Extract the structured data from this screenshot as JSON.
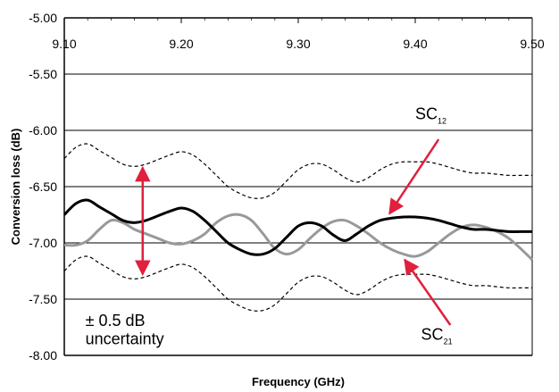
{
  "chart_data": {
    "type": "line",
    "xlabel": "Frequency (GHz)",
    "ylabel": "Conversion loss (dB)",
    "xlim": [
      9.1,
      9.5
    ],
    "ylim": [
      -8.0,
      -5.0
    ],
    "x_ticks": [
      "9.10",
      "9.20",
      "9.30",
      "9.40",
      "9.50"
    ],
    "y_ticks": [
      "-5.00",
      "-5.50",
      "-6.00",
      "-6.50",
      "-7.00",
      "-7.50",
      "-8.00"
    ],
    "grid": "horizontal",
    "x_axis_position": "top",
    "series": [
      {
        "name": "SC12",
        "style": "solid-black",
        "x": [
          9.1,
          9.11,
          9.12,
          9.13,
          9.14,
          9.15,
          9.16,
          9.17,
          9.18,
          9.19,
          9.2,
          9.21,
          9.22,
          9.23,
          9.24,
          9.25,
          9.26,
          9.27,
          9.28,
          9.29,
          9.3,
          9.31,
          9.32,
          9.33,
          9.34,
          9.35,
          9.36,
          9.37,
          9.38,
          9.39,
          9.4,
          9.41,
          9.42,
          9.43,
          9.44,
          9.45,
          9.46,
          9.47,
          9.48,
          9.49,
          9.5
        ],
        "y": [
          -6.75,
          -6.65,
          -6.62,
          -6.68,
          -6.74,
          -6.8,
          -6.82,
          -6.8,
          -6.76,
          -6.72,
          -6.69,
          -6.72,
          -6.8,
          -6.9,
          -7.0,
          -7.06,
          -7.1,
          -7.1,
          -7.05,
          -6.95,
          -6.85,
          -6.82,
          -6.85,
          -6.93,
          -6.98,
          -6.92,
          -6.85,
          -6.8,
          -6.78,
          -6.77,
          -6.77,
          -6.78,
          -6.8,
          -6.83,
          -6.86,
          -6.88,
          -6.88,
          -6.89,
          -6.9,
          -6.9,
          -6.9
        ]
      },
      {
        "name": "SC21",
        "style": "solid-gray",
        "x": [
          9.1,
          9.11,
          9.12,
          9.13,
          9.14,
          9.15,
          9.16,
          9.17,
          9.18,
          9.19,
          9.2,
          9.21,
          9.22,
          9.23,
          9.24,
          9.25,
          9.26,
          9.27,
          9.28,
          9.29,
          9.3,
          9.31,
          9.32,
          9.33,
          9.34,
          9.35,
          9.36,
          9.37,
          9.38,
          9.39,
          9.4,
          9.41,
          9.42,
          9.43,
          9.44,
          9.45,
          9.46,
          9.47,
          9.48,
          9.49,
          9.5
        ],
        "y": [
          -7.02,
          -7.02,
          -6.98,
          -6.88,
          -6.8,
          -6.82,
          -6.88,
          -6.92,
          -6.96,
          -7.0,
          -7.01,
          -6.98,
          -6.92,
          -6.82,
          -6.76,
          -6.75,
          -6.8,
          -6.92,
          -7.05,
          -7.1,
          -7.06,
          -6.96,
          -6.87,
          -6.81,
          -6.8,
          -6.85,
          -6.92,
          -7.0,
          -7.06,
          -7.1,
          -7.12,
          -7.08,
          -7.0,
          -6.92,
          -6.86,
          -6.84,
          -6.86,
          -6.9,
          -6.96,
          -7.05,
          -7.15
        ]
      },
      {
        "name": "upper uncertainty bound",
        "style": "dashed-black",
        "x": [
          9.1,
          9.11,
          9.12,
          9.13,
          9.14,
          9.15,
          9.16,
          9.17,
          9.18,
          9.19,
          9.2,
          9.21,
          9.22,
          9.23,
          9.24,
          9.25,
          9.26,
          9.27,
          9.28,
          9.29,
          9.3,
          9.31,
          9.32,
          9.33,
          9.34,
          9.35,
          9.36,
          9.37,
          9.38,
          9.39,
          9.4,
          9.41,
          9.42,
          9.43,
          9.44,
          9.45,
          9.46,
          9.47,
          9.48,
          9.49,
          9.5
        ],
        "y": [
          -6.25,
          -6.15,
          -6.12,
          -6.18,
          -6.24,
          -6.3,
          -6.32,
          -6.3,
          -6.26,
          -6.22,
          -6.19,
          -6.22,
          -6.3,
          -6.4,
          -6.5,
          -6.56,
          -6.6,
          -6.6,
          -6.55,
          -6.45,
          -6.35,
          -6.3,
          -6.3,
          -6.35,
          -6.42,
          -6.46,
          -6.42,
          -6.35,
          -6.3,
          -6.28,
          -6.28,
          -6.28,
          -6.3,
          -6.33,
          -6.36,
          -6.38,
          -6.38,
          -6.39,
          -6.4,
          -6.4,
          -6.4
        ]
      },
      {
        "name": "lower uncertainty bound",
        "style": "dashed-black",
        "x": [
          9.1,
          9.11,
          9.12,
          9.13,
          9.14,
          9.15,
          9.16,
          9.17,
          9.18,
          9.19,
          9.2,
          9.21,
          9.22,
          9.23,
          9.24,
          9.25,
          9.26,
          9.27,
          9.28,
          9.29,
          9.3,
          9.31,
          9.32,
          9.33,
          9.34,
          9.35,
          9.36,
          9.37,
          9.38,
          9.39,
          9.4,
          9.41,
          9.42,
          9.43,
          9.44,
          9.45,
          9.46,
          9.47,
          9.48,
          9.49,
          9.5
        ],
        "y": [
          -7.25,
          -7.15,
          -7.12,
          -7.18,
          -7.24,
          -7.3,
          -7.32,
          -7.3,
          -7.26,
          -7.22,
          -7.19,
          -7.22,
          -7.3,
          -7.4,
          -7.5,
          -7.56,
          -7.6,
          -7.6,
          -7.55,
          -7.45,
          -7.35,
          -7.3,
          -7.3,
          -7.35,
          -7.42,
          -7.46,
          -7.42,
          -7.35,
          -7.3,
          -7.28,
          -7.28,
          -7.28,
          -7.3,
          -7.33,
          -7.36,
          -7.38,
          -7.38,
          -7.39,
          -7.4,
          -7.4,
          -7.4
        ]
      }
    ],
    "annotations": {
      "sc12_label": "SC",
      "sc12_sub": "12",
      "sc21_label": "SC",
      "sc21_sub": "21",
      "uncertainty_line1": "± 0.5 dB",
      "uncertainty_line2": "uncertainty",
      "arrow_color": "#e0203c"
    },
    "colors": {
      "sc12": "#000000",
      "sc21": "#999999",
      "bounds": "#000000",
      "grid": "#000000"
    }
  }
}
